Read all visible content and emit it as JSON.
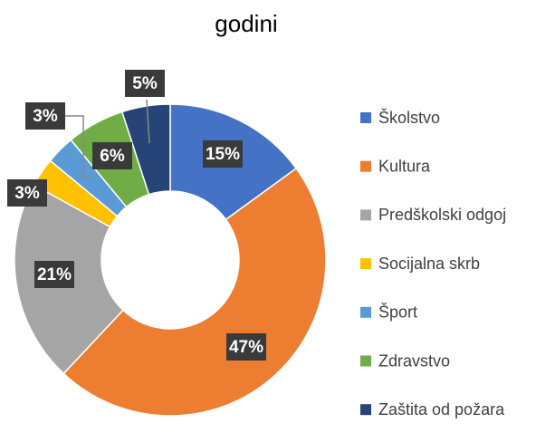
{
  "chart_data": {
    "type": "donut",
    "title": "godini",
    "categories": [
      "Školstvo",
      "Kultura",
      "Predškolski odgoj",
      "Socijalna skrb",
      "Šport",
      "Zdravstvo",
      "Zaštita od požara"
    ],
    "values": [
      15,
      47,
      21,
      3,
      3,
      6,
      5
    ],
    "value_labels": [
      "15%",
      "47%",
      "21%",
      "3%",
      "3%",
      "6%",
      "5%"
    ],
    "colors": [
      "#4472c4",
      "#ed7d31",
      "#a5a5a5",
      "#ffc000",
      "#5b9bd5",
      "#70ad47",
      "#264478"
    ],
    "legend": "right"
  }
}
